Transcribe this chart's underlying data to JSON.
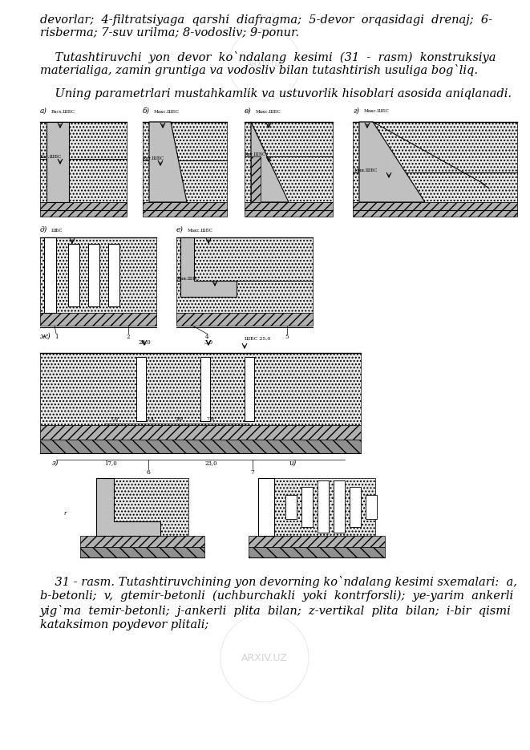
{
  "background_color": "#ffffff",
  "page_width": 6.61,
  "page_height": 9.35,
  "text_color": "#000000",
  "top_italic_line1": "devorlar;  4-filtratsiyaga  qarshi  diafragma;  5-devor  orqasidagi  drenaj;  6-",
  "top_italic_line2": "risberma; 7-suv urilma; 8-vodosliv; 9-ponur.",
  "para1_line1": "    Tutashtiruvchi  yon  devor  ko`ndalang  kesimi  (31  -  rasm)  konstruksiya",
  "para1_line2": "materialiga, zamin gruntiga va vodosliv bilan tutashtirish usuliga bog`liq.",
  "para2": "    Uning parametrlari mustahkamlik va ustuvorlik hisoblari asosida aniqlanadi.",
  "caption_line1": "    31 - rasm. Tutashtiruvchining yon devorning ko`ndalang kesimi sxemalari:  a,",
  "caption_line2": "b-betonli;  v,  gtemir-betonli  (uchburchakli  yoki  kontrforsli);  ye-yarim  ankerli",
  "caption_line3": "yig`ma  temir-betonli;  j-ankerli  plita  bilan;  z-vertikal  plita  bilan;  i-bir  qismi",
  "caption_line4": "kataksimon poydevor plitali;",
  "font_size_body": 10.5,
  "font_size_small": 5.0,
  "font_size_label": 6.5
}
